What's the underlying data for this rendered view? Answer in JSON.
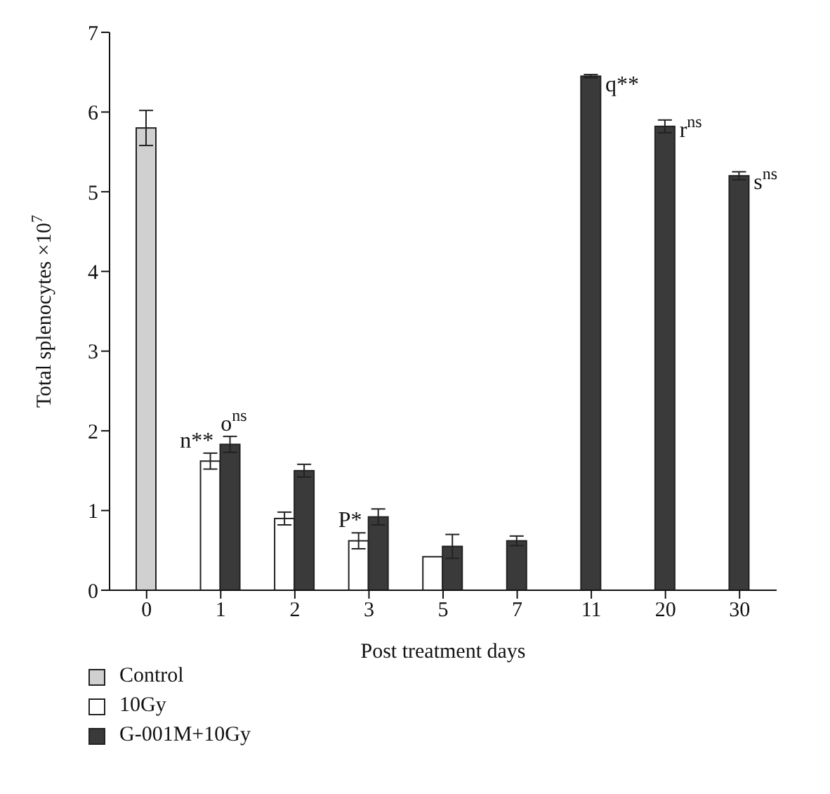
{
  "chart_data": {
    "type": "bar",
    "xlabel": "Post treatment days",
    "ylabel": "Total splenocytes ×10$^{7}$",
    "categories": [
      "0",
      "1",
      "2",
      "3",
      "5",
      "7",
      "11",
      "20",
      "30"
    ],
    "series": [
      {
        "name": "Control",
        "color": "#d0d0d0",
        "values": [
          5.8,
          null,
          null,
          null,
          null,
          null,
          null,
          null,
          null
        ],
        "errors": [
          0.22,
          null,
          null,
          null,
          null,
          null,
          null,
          null,
          null
        ]
      },
      {
        "name": "10Gy",
        "color": "#ffffff",
        "values": [
          null,
          1.62,
          0.9,
          0.62,
          0.42,
          null,
          null,
          null,
          null
        ],
        "errors": [
          null,
          0.1,
          0.08,
          0.1,
          null,
          null,
          null,
          null,
          null
        ]
      },
      {
        "name": "G-001M+10Gy",
        "color": "#3a3a3a",
        "values": [
          null,
          1.83,
          1.5,
          0.92,
          0.55,
          0.62,
          6.45,
          5.82,
          5.2
        ],
        "errors": [
          null,
          0.1,
          0.08,
          0.1,
          0.15,
          0.06,
          0.02,
          0.08,
          0.05
        ]
      }
    ],
    "annotations": [
      {
        "text": "n**",
        "x": "1",
        "y": 1.62
      },
      {
        "text": "o$^{ns}$",
        "x": "1",
        "y": 1.83
      },
      {
        "text": "P*",
        "x": "3",
        "y": 0.62
      },
      {
        "text": "q**",
        "x": "11",
        "y": 6.45
      },
      {
        "text": "r$^{ns}$",
        "x": "20",
        "y": 5.82
      },
      {
        "text": "s$^{ns}$",
        "x": "30",
        "y": 5.2
      }
    ],
    "ylim": [
      0,
      7
    ],
    "yticks": [
      0,
      1,
      2,
      3,
      4,
      5,
      6,
      7
    ],
    "grid": false,
    "legend": "bottom left"
  }
}
